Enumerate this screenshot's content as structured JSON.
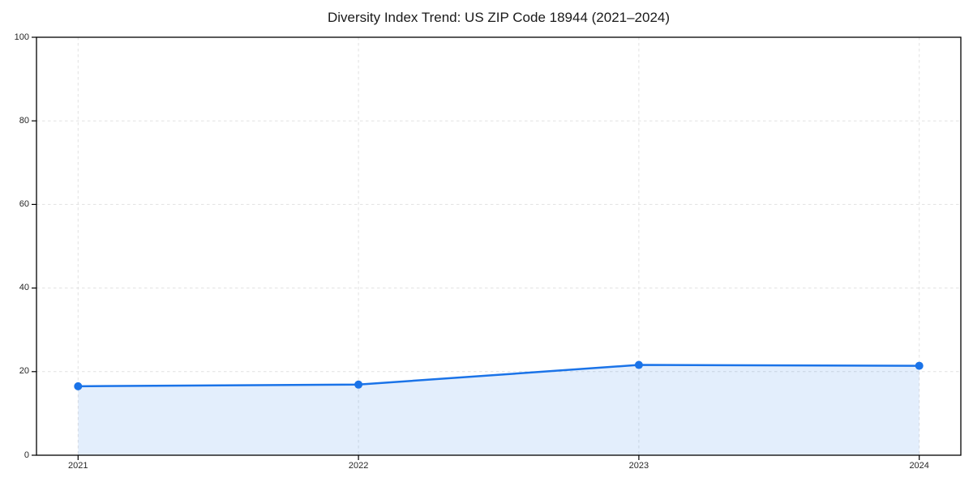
{
  "page": {
    "background": "#ffffff"
  },
  "chart_data": {
    "type": "area",
    "title": "Diversity Index Trend: US ZIP Code 18944 (2021–2024)",
    "categories": [
      "2021",
      "2022",
      "2023",
      "2024"
    ],
    "series": [
      {
        "name": "Diversity Index",
        "values": [
          16.5,
          16.9,
          21.6,
          21.4
        ]
      }
    ],
    "xlabel": "",
    "ylabel": "",
    "ylim": [
      0,
      100
    ],
    "yticks": [
      0,
      20,
      40,
      60,
      80,
      100
    ],
    "grid": "dashed-both-axes",
    "legend": "none",
    "marker": "circle",
    "colors": {
      "line": "#1a73e8",
      "marker": "#1a73e8",
      "fill": "rgba(26,115,232,0.12)",
      "grid": "#e1e1e1",
      "spine": "#000000",
      "title_text": "#1a1a1a",
      "tick_text": "#262626"
    }
  }
}
